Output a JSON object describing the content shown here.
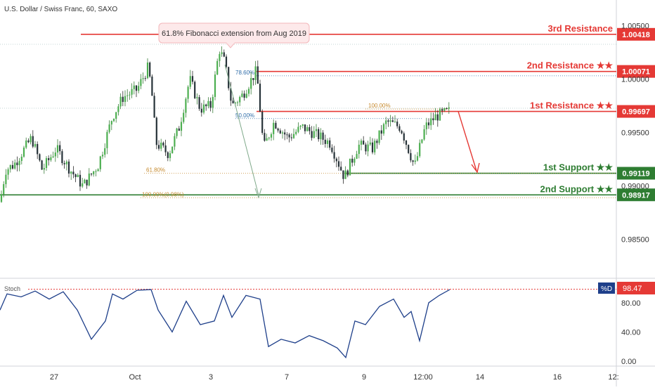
{
  "symbol": "U.S. Dollar / Swiss Franc, 60, SAXO",
  "callout": "61.8% Fibonacci extension from Aug 2019",
  "levels": [
    {
      "label": "3rd Resistance",
      "price": 1.00418,
      "price_label": "1.00418",
      "color": "#e53935"
    },
    {
      "label": "2nd Resistance ★★",
      "price": 1.00071,
      "price_label": "1.00071",
      "color": "#e53935"
    },
    {
      "label": "1st Resistance ★★",
      "price": 0.99697,
      "price_label": "0.99697",
      "color": "#e53935"
    },
    {
      "label": "1st Support ★★",
      "price": 0.99119,
      "price_label": "0.99119",
      "color": "#2e7d32"
    },
    {
      "label": "2nd Support ★★",
      "price": 0.98917,
      "price_label": "0.98917",
      "color": "#2e7d32"
    }
  ],
  "fib_labels": [
    {
      "text": "78.60%",
      "price": 1.0003
    },
    {
      "text": "50.00%",
      "price": 0.9963
    },
    {
      "text": "61.80%",
      "price": 0.9912
    },
    {
      "text": "100.00%",
      "price": 0.9972
    },
    {
      "text": "100.00%(0.98%)",
      "price": 0.9889
    }
  ],
  "price_axis": {
    "ticks": [
      "1.00500",
      "1.00000",
      "0.99500",
      "0.99000",
      "0.98500"
    ]
  },
  "time_axis": {
    "ticks": [
      "27",
      "Oct",
      "3",
      "7",
      "9",
      "12:00",
      "14",
      "16",
      "12:"
    ]
  },
  "stoch": {
    "label": "Stoch",
    "value_tag": "%D",
    "value": "98.47",
    "ticks": [
      "80.00",
      "40.00",
      "0.00"
    ]
  },
  "chart_data": {
    "type": "candlestick",
    "title": "U.S. Dollar / Swiss Franc, 60, SAXO",
    "ylim": [
      0.9815,
      1.0066
    ],
    "price_path": [
      [
        0,
        0.9885
      ],
      [
        8,
        0.9915
      ],
      [
        20,
        0.992
      ],
      [
        45,
        0.9945
      ],
      [
        60,
        0.9915
      ],
      [
        80,
        0.9935
      ],
      [
        100,
        0.9915
      ],
      [
        118,
        0.99
      ],
      [
        140,
        0.992
      ],
      [
        160,
        0.9965
      ],
      [
        175,
        0.9983
      ],
      [
        195,
        0.999
      ],
      [
        210,
        1.001
      ],
      [
        215,
        0.9995
      ],
      [
        222,
        0.994
      ],
      [
        240,
        0.993
      ],
      [
        255,
        0.9955
      ],
      [
        270,
        1.0
      ],
      [
        285,
        0.9972
      ],
      [
        300,
        0.9975
      ],
      [
        312,
        1.0028
      ],
      [
        320,
        1.0015
      ],
      [
        330,
        0.9975
      ],
      [
        345,
        0.9985
      ],
      [
        365,
        1.0008
      ],
      [
        375,
        0.9935
      ],
      [
        390,
        0.996
      ],
      [
        410,
        0.9945
      ],
      [
        430,
        0.9955
      ],
      [
        450,
        0.9948
      ],
      [
        470,
        0.994
      ],
      [
        490,
        0.9908
      ],
      [
        510,
        0.9938
      ],
      [
        530,
        0.9935
      ],
      [
        550,
        0.996
      ],
      [
        570,
        0.9955
      ],
      [
        590,
        0.9918
      ],
      [
        605,
        0.9955
      ],
      [
        620,
        0.9965
      ],
      [
        640,
        0.997
      ]
    ],
    "stoch_path": [
      [
        0,
        70
      ],
      [
        10,
        92
      ],
      [
        30,
        88
      ],
      [
        50,
        96
      ],
      [
        70,
        85
      ],
      [
        90,
        95
      ],
      [
        110,
        70
      ],
      [
        130,
        30
      ],
      [
        150,
        55
      ],
      [
        160,
        92
      ],
      [
        175,
        85
      ],
      [
        195,
        97
      ],
      [
        215,
        98
      ],
      [
        225,
        70
      ],
      [
        245,
        40
      ],
      [
        265,
        82
      ],
      [
        285,
        50
      ],
      [
        305,
        55
      ],
      [
        318,
        90
      ],
      [
        330,
        60
      ],
      [
        350,
        90
      ],
      [
        370,
        85
      ],
      [
        382,
        20
      ],
      [
        400,
        30
      ],
      [
        420,
        25
      ],
      [
        440,
        35
      ],
      [
        460,
        28
      ],
      [
        480,
        18
      ],
      [
        492,
        5
      ],
      [
        505,
        55
      ],
      [
        520,
        50
      ],
      [
        540,
        75
      ],
      [
        560,
        85
      ],
      [
        575,
        60
      ],
      [
        585,
        68
      ],
      [
        597,
        28
      ],
      [
        610,
        80
      ],
      [
        625,
        90
      ],
      [
        640,
        98
      ]
    ]
  }
}
